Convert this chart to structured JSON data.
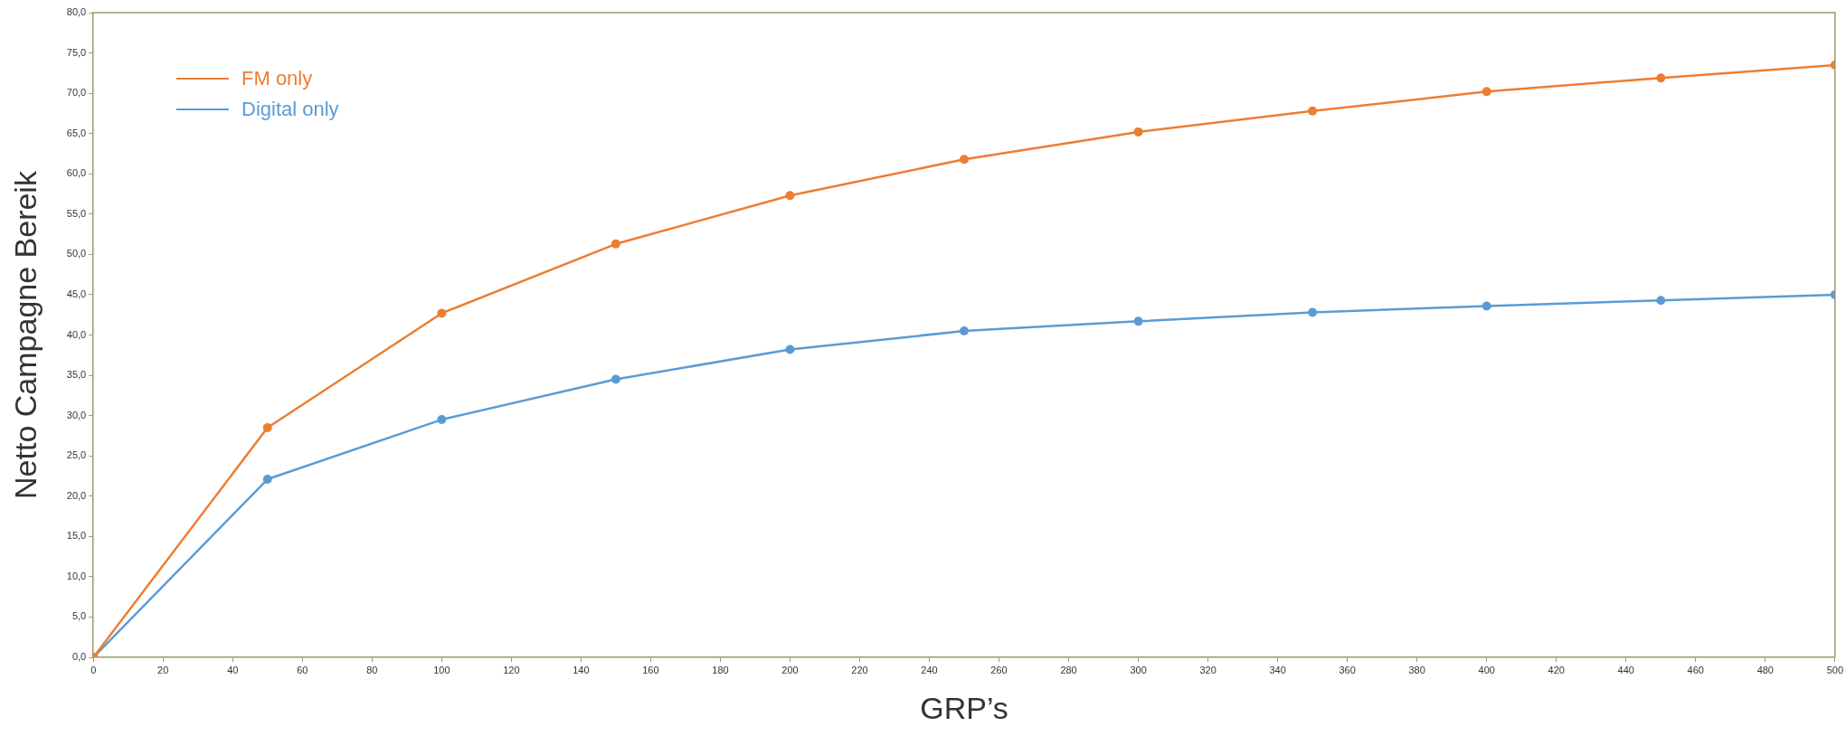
{
  "chart_data": {
    "type": "line",
    "xlabel": "GRP’s",
    "ylabel": "Netto Campagne Bereik",
    "x": [
      0,
      50,
      100,
      150,
      200,
      250,
      300,
      350,
      400,
      450,
      500
    ],
    "series": [
      {
        "name": "FM only",
        "color": "#ed7d31",
        "values": [
          0,
          28.5,
          42.7,
          51.3,
          57.3,
          61.8,
          65.2,
          67.8,
          70.2,
          71.9,
          73.5
        ]
      },
      {
        "name": "Digital only",
        "color": "#5b9bd5",
        "values": [
          0,
          22.1,
          29.5,
          34.5,
          38.2,
          40.5,
          41.7,
          42.8,
          43.6,
          44.3,
          45.0
        ]
      }
    ],
    "xlim": [
      0,
      500
    ],
    "xticks": [
      0,
      20,
      40,
      60,
      80,
      100,
      120,
      140,
      160,
      180,
      200,
      220,
      240,
      260,
      280,
      300,
      320,
      340,
      360,
      380,
      400,
      420,
      440,
      460,
      480,
      500
    ],
    "ylim": [
      0,
      80
    ],
    "yticks": [
      {
        "value": 0,
        "label": "0,0"
      },
      {
        "value": 5,
        "label": "5,0"
      },
      {
        "value": 10,
        "label": "10,0"
      },
      {
        "value": 15,
        "label": "15,0"
      },
      {
        "value": 20,
        "label": "20,0"
      },
      {
        "value": 25,
        "label": "25,0"
      },
      {
        "value": 30,
        "label": "30,0"
      },
      {
        "value": 35,
        "label": "35,0"
      },
      {
        "value": 40,
        "label": "40,0"
      },
      {
        "value": 45,
        "label": "45,0"
      },
      {
        "value": 50,
        "label": "50,0"
      },
      {
        "value": 55,
        "label": "55,0"
      },
      {
        "value": 60,
        "label": "60,0"
      },
      {
        "value": 65,
        "label": "65,0"
      },
      {
        "value": 70,
        "label": "70,0"
      },
      {
        "value": 75,
        "label": "75,0"
      },
      {
        "value": 80,
        "label": "80,0"
      }
    ],
    "grid": false,
    "legend": "top left",
    "marker": "circle",
    "line_style": "solid"
  }
}
